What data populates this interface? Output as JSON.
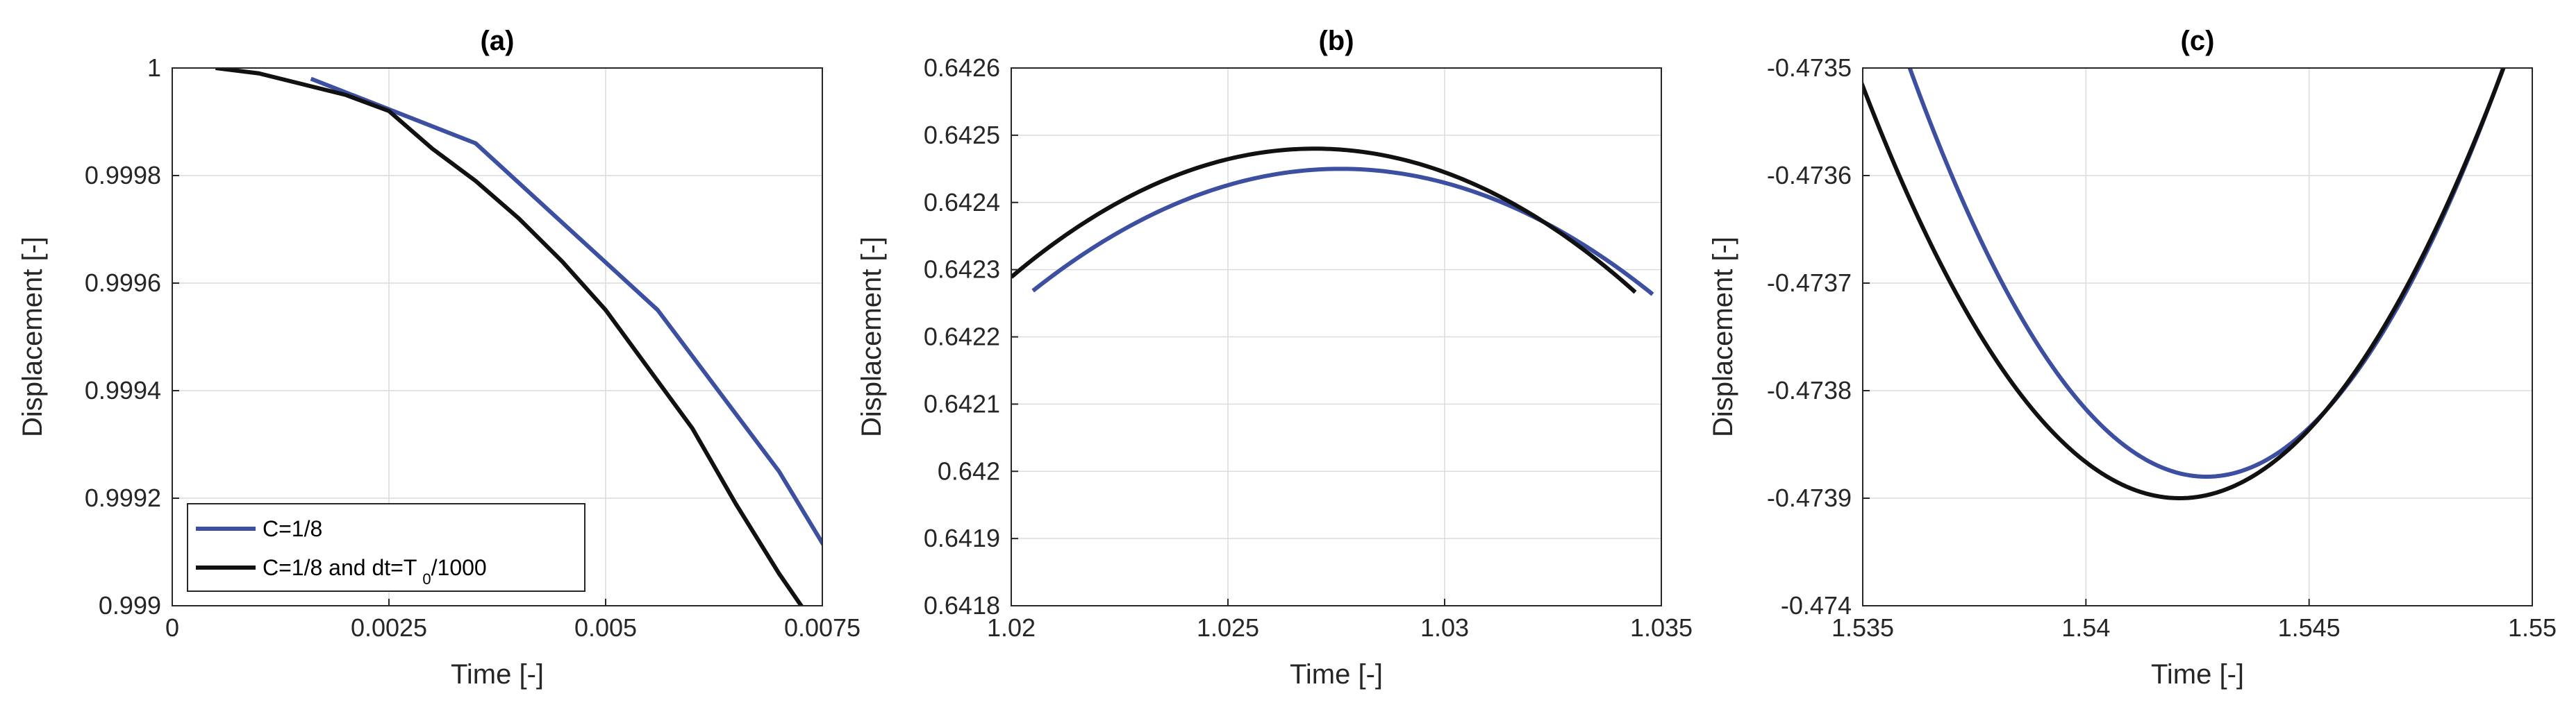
{
  "chart_data": [
    {
      "type": "line",
      "title": "(a)",
      "xlabel": "Time [-]",
      "ylabel": "Displacement [-]",
      "xlim": [
        0,
        0.0075
      ],
      "ylim": [
        0.999,
        1.0
      ],
      "xticks": [
        0,
        0.0025,
        0.005,
        0.0075
      ],
      "xtick_labels": [
        "0",
        "0.0025",
        "0.005",
        "0.0075"
      ],
      "yticks": [
        0.999,
        0.9992,
        0.9994,
        0.9996,
        0.9998,
        1.0
      ],
      "ytick_labels": [
        "0.999",
        "0.9992",
        "0.9994",
        "0.9996",
        "0.9998",
        "1"
      ],
      "grid": true,
      "legend": {
        "position": "bottom-left",
        "entries": [
          {
            "label": "C=1/8",
            "color": "#3d4fa0"
          },
          {
            "label": "C=1/8 and dt=T",
            "subscript": "0",
            "suffix": "/1000",
            "color": "#111111"
          }
        ]
      },
      "series": [
        {
          "color": "#3d4fa0",
          "x": [
            0.0016,
            0.0035,
            0.0056,
            0.007,
            0.0076
          ],
          "y": [
            0.99998,
            0.99986,
            0.99955,
            0.99925,
            0.99909
          ]
        },
        {
          "color": "#111111",
          "x": [
            0.0005,
            0.001,
            0.0015,
            0.002,
            0.0025,
            0.003,
            0.0035,
            0.004,
            0.0045,
            0.005,
            0.0055,
            0.006,
            0.0065,
            0.007,
            0.0073
          ],
          "y": [
            1.0,
            0.99999,
            0.99997,
            0.99995,
            0.99992,
            0.99985,
            0.99979,
            0.99972,
            0.99964,
            0.99955,
            0.99944,
            0.99933,
            0.99919,
            0.99906,
            0.99899
          ]
        }
      ]
    },
    {
      "type": "line",
      "title": "(b)",
      "xlabel": "Time [-]",
      "ylabel": "Displacement [-]",
      "xlim": [
        1.02,
        1.035
      ],
      "ylim": [
        0.6418,
        0.6426
      ],
      "xticks": [
        1.02,
        1.025,
        1.03,
        1.035
      ],
      "xtick_labels": [
        "1.02",
        "1.025",
        "1.03",
        "1.035"
      ],
      "yticks": [
        0.6418,
        0.6419,
        0.642,
        0.6421,
        0.6422,
        0.6423,
        0.6424,
        0.6425,
        0.6426
      ],
      "ytick_labels": [
        "0.6418",
        "0.6419",
        "0.642",
        "0.6421",
        "0.6422",
        "0.6423",
        "0.6424",
        "0.6425",
        "0.6426"
      ],
      "grid": true,
      "series": [
        {
          "color": "#3d4fa0",
          "parabola": {
            "vertex_x": 1.0276,
            "vertex_y": 0.64245,
            "curvature": 3.6
          },
          "x_range": [
            1.0205,
            1.0348
          ]
        },
        {
          "color": "#111111",
          "parabola": {
            "vertex_x": 1.027,
            "vertex_y": 0.64248,
            "curvature": 3.9
          },
          "x_range": [
            1.02,
            1.0344
          ]
        }
      ]
    },
    {
      "type": "line",
      "title": "(c)",
      "xlabel": "Time [-]",
      "ylabel": "Displacement [-]",
      "xlim": [
        1.535,
        1.55
      ],
      "ylim": [
        -0.474,
        -0.4735
      ],
      "xticks": [
        1.535,
        1.54,
        1.545,
        1.55
      ],
      "xtick_labels": [
        "1.535",
        "1.54",
        "1.545",
        "1.55"
      ],
      "yticks": [
        -0.474,
        -0.4739,
        -0.4738,
        -0.4737,
        -0.4736,
        -0.4735
      ],
      "ytick_labels": [
        "-0.474",
        "-0.4739",
        "-0.4738",
        "-0.4737",
        "-0.4736",
        "-0.4735"
      ],
      "grid": true,
      "series": [
        {
          "color": "#3d4fa0",
          "parabola": {
            "vertex_x": 1.5427,
            "vertex_y": -0.47388,
            "curvature": -8.6
          },
          "x_range": [
            1.5352,
            1.551
          ]
        },
        {
          "color": "#111111",
          "parabola": {
            "vertex_x": 1.5421,
            "vertex_y": -0.4739,
            "curvature": -7.6
          },
          "x_range": [
            1.534,
            1.551
          ]
        }
      ]
    }
  ]
}
